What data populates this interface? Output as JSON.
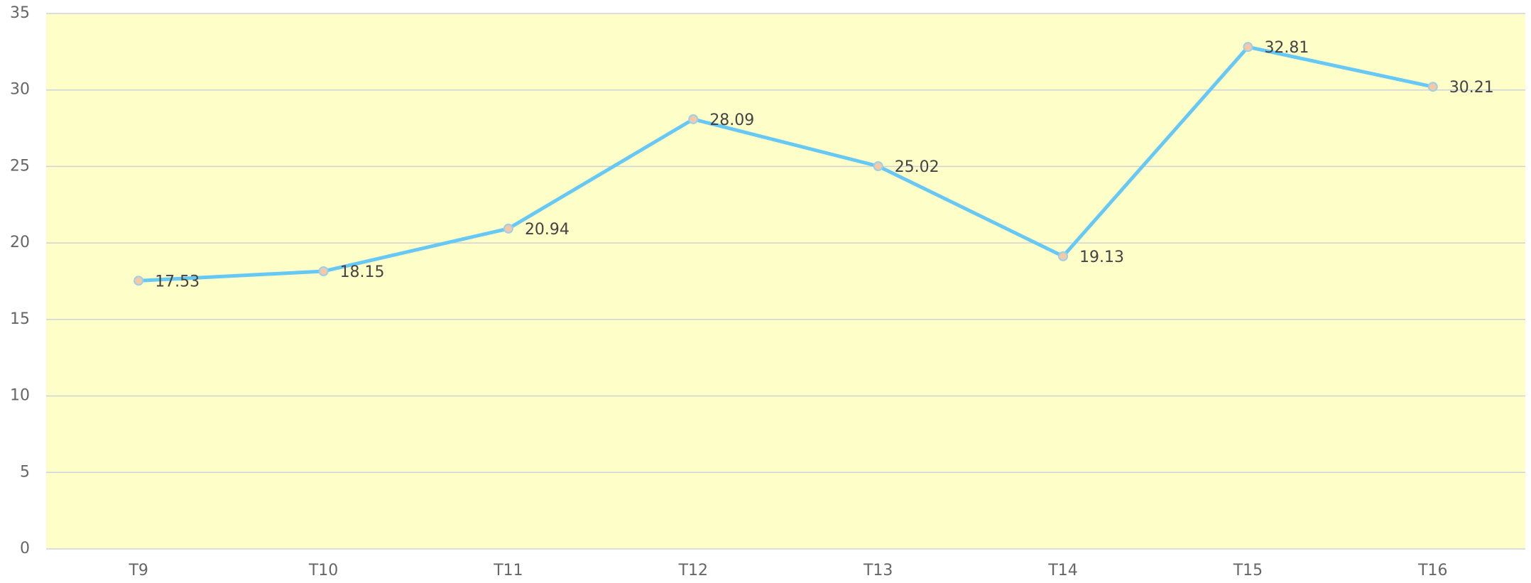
{
  "chart_data": {
    "type": "line",
    "categories": [
      "T9",
      "T10",
      "T11",
      "T12",
      "T13",
      "T14",
      "T15",
      "T16"
    ],
    "series": [
      {
        "color": "#66c8f5",
        "values": [
          17.53,
          18.15,
          20.94,
          28.09,
          25.02,
          19.13,
          32.81,
          30.21
        ]
      }
    ],
    "ylim": [
      0,
      35
    ],
    "yticks": [
      0,
      5,
      10,
      15,
      20,
      25,
      30,
      35
    ],
    "grid": true
  }
}
